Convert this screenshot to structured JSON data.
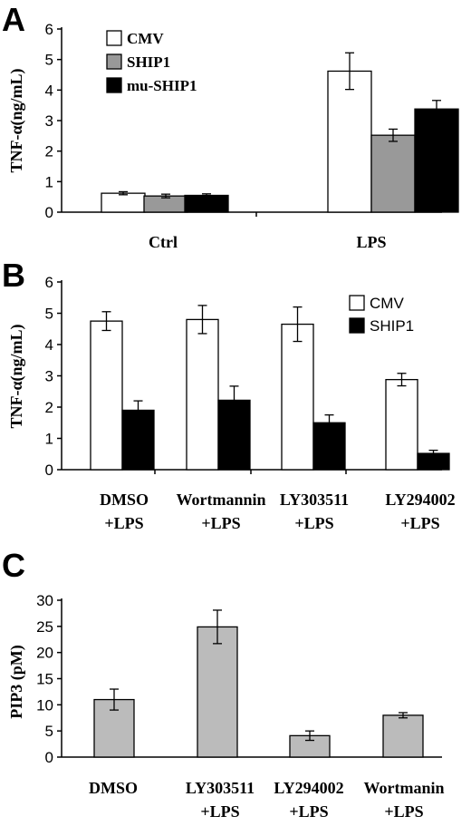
{
  "panels": {
    "a": {
      "letter": "A",
      "ylabel": "TNF-α(ng/mL)"
    },
    "b": {
      "letter": "B",
      "ylabel": "TNF-α(ng/mL)"
    },
    "c": {
      "letter": "C",
      "ylabel": "PIP3 (pM)"
    }
  },
  "colors": {
    "cmv": "#ffffff",
    "ship1_a": "#999999",
    "mu_ship1": "#000000",
    "ship1_b": "#000000",
    "pip3": "#bbbbbb"
  },
  "chart_data": [
    {
      "type": "bar",
      "categories": [
        "Ctrl",
        "LPS"
      ],
      "series": [
        {
          "name": "CMV",
          "values": [
            0.62,
            4.62
          ],
          "errors": [
            0.05,
            0.6
          ]
        },
        {
          "name": "SHIP1",
          "values": [
            0.53,
            2.52
          ],
          "errors": [
            0.06,
            0.2
          ]
        },
        {
          "name": "mu-SHIP1",
          "values": [
            0.55,
            3.38
          ],
          "errors": [
            0.05,
            0.28
          ]
        }
      ],
      "ylim": [
        0,
        6
      ],
      "yticks": [
        0,
        1,
        2,
        3,
        4,
        5,
        6
      ],
      "legend": "top-left"
    },
    {
      "type": "bar",
      "categories": [
        [
          "DMSO",
          "+LPS"
        ],
        [
          "Wortmannin",
          "+LPS"
        ],
        [
          "LY303511",
          "+LPS"
        ],
        [
          "LY294002",
          "+LPS"
        ]
      ],
      "series": [
        {
          "name": "CMV",
          "values": [
            4.75,
            4.8,
            4.65,
            2.88
          ],
          "errors": [
            0.3,
            0.45,
            0.55,
            0.2
          ]
        },
        {
          "name": "SHIP1",
          "values": [
            1.9,
            2.22,
            1.5,
            0.52
          ],
          "errors": [
            0.3,
            0.45,
            0.25,
            0.1
          ]
        }
      ],
      "ylim": [
        0,
        6
      ],
      "yticks": [
        0,
        1,
        2,
        3,
        4,
        5,
        6
      ],
      "legend": "top-right"
    },
    {
      "type": "bar",
      "categories": [
        [
          "DMSO",
          ""
        ],
        [
          "LY303511",
          "+LPS"
        ],
        [
          "LY294002",
          "+LPS"
        ],
        [
          "Wortmanin",
          "+LPS"
        ]
      ],
      "series": [
        {
          "values": [
            11.0,
            24.9,
            4.1,
            8.0
          ],
          "errors": [
            2.0,
            3.2,
            0.9,
            0.5
          ]
        }
      ],
      "ylim": [
        0,
        30
      ],
      "yticks": [
        0,
        5,
        10,
        15,
        20,
        25,
        30
      ]
    }
  ]
}
